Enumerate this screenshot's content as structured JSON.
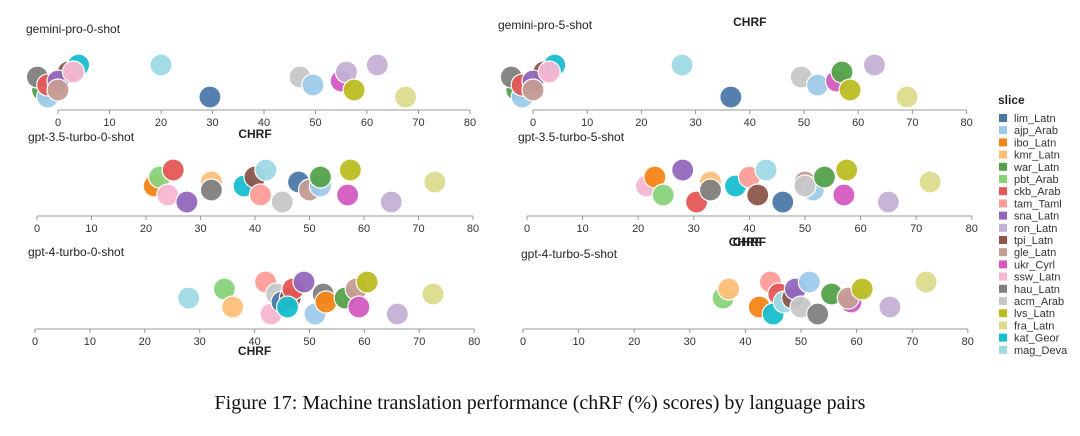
{
  "caption": "Figure 17: Machine translation performance (chRF (%) scores) by language pairs",
  "legend": {
    "title": "slice",
    "items": [
      {
        "name": "lim_Latn",
        "color": "#4c78a8"
      },
      {
        "name": "ajp_Arab",
        "color": "#9ecae9"
      },
      {
        "name": "ibo_Latn",
        "color": "#f58518"
      },
      {
        "name": "kmr_Latn",
        "color": "#ffbf79"
      },
      {
        "name": "war_Latn",
        "color": "#54a24b"
      },
      {
        "name": "pbt_Arab",
        "color": "#88d27a"
      },
      {
        "name": "ckb_Arab",
        "color": "#e45756"
      },
      {
        "name": "tam_Taml",
        "color": "#ff9d98"
      },
      {
        "name": "sna_Latn",
        "color": "#9467bd"
      },
      {
        "name": "ron_Latn",
        "color": "#c5b0d5"
      },
      {
        "name": "tpi_Latn",
        "color": "#8c564b"
      },
      {
        "name": "gle_Latn",
        "color": "#c49c94"
      },
      {
        "name": "ukr_Cyrl",
        "color": "#d45ac0"
      },
      {
        "name": "ssw_Latn",
        "color": "#f7b6d2"
      },
      {
        "name": "hau_Latn",
        "color": "#7f7f7f"
      },
      {
        "name": "acm_Arab",
        "color": "#c7c7c7"
      },
      {
        "name": "lvs_Latn",
        "color": "#bcbd22"
      },
      {
        "name": "fra_Latn",
        "color": "#dbdb8d"
      },
      {
        "name": "kat_Geor",
        "color": "#17becf"
      },
      {
        "name": "mag_Deva",
        "color": "#9edae5"
      }
    ]
  },
  "chart_data": [
    {
      "type": "scatter",
      "title": "gemini-pro-0-shot",
      "xlabel": "",
      "xlim": [
        0,
        80
      ],
      "xticks": [
        0,
        10,
        20,
        30,
        40,
        50,
        60,
        70,
        80
      ],
      "points": [
        {
          "slice": "tam_Taml",
          "x": 0
        },
        {
          "slice": "tpi_Latn",
          "x": 2
        },
        {
          "slice": "war_Latn",
          "x": -3
        },
        {
          "slice": "kat_Geor",
          "x": 4
        },
        {
          "slice": "ajp_Arab",
          "x": -2
        },
        {
          "slice": "hau_Latn",
          "x": -4
        },
        {
          "slice": "ckb_Arab",
          "x": -2
        },
        {
          "slice": "sna_Latn",
          "x": 0
        },
        {
          "slice": "ssw_Latn",
          "x": 3
        },
        {
          "slice": "gle_Latn",
          "x": 0
        },
        {
          "slice": "mag_Deva",
          "x": 20
        },
        {
          "slice": "lim_Latn",
          "x": 29.5
        },
        {
          "slice": "acm_Arab",
          "x": 47
        },
        {
          "slice": "ajp_Arab",
          "x": 49.5
        },
        {
          "slice": "ukr_Cyrl",
          "x": 55
        },
        {
          "slice": "ron_Latn",
          "x": 56
        },
        {
          "slice": "lvs_Latn",
          "x": 57.5
        },
        {
          "slice": "ron_Latn",
          "x": 62
        },
        {
          "slice": "fra_Latn",
          "x": 67.5
        }
      ]
    },
    {
      "type": "scatter",
      "title": "gemini-pro-5-shot",
      "xlabel": "CHRF",
      "xlim": [
        0,
        80
      ],
      "xticks": [
        0,
        10,
        20,
        30,
        40,
        50,
        60,
        70,
        80
      ],
      "points": [
        {
          "slice": "tam_Taml",
          "x": 0
        },
        {
          "slice": "tpi_Latn",
          "x": 2
        },
        {
          "slice": "war_Latn",
          "x": -3
        },
        {
          "slice": "kat_Geor",
          "x": 4
        },
        {
          "slice": "ajp_Arab",
          "x": -2
        },
        {
          "slice": "hau_Latn",
          "x": -4
        },
        {
          "slice": "ckb_Arab",
          "x": -2
        },
        {
          "slice": "sna_Latn",
          "x": 0
        },
        {
          "slice": "ssw_Latn",
          "x": 3
        },
        {
          "slice": "gle_Latn",
          "x": 0
        },
        {
          "slice": "mag_Deva",
          "x": 27.5
        },
        {
          "slice": "lim_Latn",
          "x": 36.5
        },
        {
          "slice": "acm_Arab",
          "x": 49.5
        },
        {
          "slice": "ajp_Arab",
          "x": 52.5
        },
        {
          "slice": "ukr_Cyrl",
          "x": 56
        },
        {
          "slice": "war_Latn",
          "x": 57
        },
        {
          "slice": "lvs_Latn",
          "x": 58.5
        },
        {
          "slice": "ron_Latn",
          "x": 63
        },
        {
          "slice": "fra_Latn",
          "x": 69
        }
      ]
    },
    {
      "type": "scatter",
      "title": "gpt-3.5-turbo-0-shot",
      "xlabel": "CHRF",
      "xlim": [
        0,
        80
      ],
      "xticks": [
        0,
        10,
        20,
        30,
        40,
        50,
        60,
        70,
        80
      ],
      "points": [
        {
          "slice": "ibo_Latn",
          "x": 21.5
        },
        {
          "slice": "pbt_Arab",
          "x": 22.5
        },
        {
          "slice": "ssw_Latn",
          "x": 24
        },
        {
          "slice": "ckb_Arab",
          "x": 25
        },
        {
          "slice": "sna_Latn",
          "x": 27.5
        },
        {
          "slice": "kmr_Latn",
          "x": 32
        },
        {
          "slice": "hau_Latn",
          "x": 32
        },
        {
          "slice": "kat_Geor",
          "x": 38
        },
        {
          "slice": "tpi_Latn",
          "x": 40
        },
        {
          "slice": "tam_Taml",
          "x": 41
        },
        {
          "slice": "mag_Deva",
          "x": 42
        },
        {
          "slice": "acm_Arab",
          "x": 45
        },
        {
          "slice": "lim_Latn",
          "x": 48
        },
        {
          "slice": "gle_Latn",
          "x": 50
        },
        {
          "slice": "ajp_Arab",
          "x": 52
        },
        {
          "slice": "war_Latn",
          "x": 52
        },
        {
          "slice": "ukr_Cyrl",
          "x": 57
        },
        {
          "slice": "lvs_Latn",
          "x": 57.5
        },
        {
          "slice": "ron_Latn",
          "x": 65
        },
        {
          "slice": "fra_Latn",
          "x": 73
        }
      ]
    },
    {
      "type": "scatter",
      "title": "gpt-3.5-turbo-5-shot",
      "xlabel": "CHRF",
      "xlim": [
        0,
        80
      ],
      "xticks": [
        0,
        10,
        20,
        30,
        40,
        50,
        60,
        70,
        80
      ],
      "points": [
        {
          "slice": "ssw_Latn",
          "x": 21.5
        },
        {
          "slice": "ibo_Latn",
          "x": 23
        },
        {
          "slice": "pbt_Arab",
          "x": 24.5
        },
        {
          "slice": "sna_Latn",
          "x": 28
        },
        {
          "slice": "ckb_Arab",
          "x": 30.5
        },
        {
          "slice": "kmr_Latn",
          "x": 33
        },
        {
          "slice": "hau_Latn",
          "x": 33
        },
        {
          "slice": "kat_Geor",
          "x": 37.5
        },
        {
          "slice": "tam_Taml",
          "x": 40
        },
        {
          "slice": "tpi_Latn",
          "x": 41.5
        },
        {
          "slice": "mag_Deva",
          "x": 43
        },
        {
          "slice": "lim_Latn",
          "x": 46
        },
        {
          "slice": "gle_Latn",
          "x": 50
        },
        {
          "slice": "ajp_Arab",
          "x": 51.5
        },
        {
          "slice": "acm_Arab",
          "x": 50
        },
        {
          "slice": "war_Latn",
          "x": 53.5
        },
        {
          "slice": "ukr_Cyrl",
          "x": 57
        },
        {
          "slice": "lvs_Latn",
          "x": 57.5
        },
        {
          "slice": "ron_Latn",
          "x": 65
        },
        {
          "slice": "fra_Latn",
          "x": 72.5
        }
      ]
    },
    {
      "type": "scatter",
      "title": "gpt-4-turbo-0-shot",
      "xlabel": "CHRF",
      "xlim": [
        0,
        80
      ],
      "xticks": [
        0,
        10,
        20,
        30,
        40,
        50,
        60,
        70,
        80
      ],
      "points": [
        {
          "slice": "mag_Deva",
          "x": 28
        },
        {
          "slice": "pbt_Arab",
          "x": 34.5
        },
        {
          "slice": "kmr_Latn",
          "x": 36
        },
        {
          "slice": "tam_Taml",
          "x": 42
        },
        {
          "slice": "ssw_Latn",
          "x": 43
        },
        {
          "slice": "acm_Arab",
          "x": 44
        },
        {
          "slice": "lim_Latn",
          "x": 45
        },
        {
          "slice": "tpi_Latn",
          "x": 46.5
        },
        {
          "slice": "ckb_Arab",
          "x": 47
        },
        {
          "slice": "kat_Geor",
          "x": 46
        },
        {
          "slice": "sna_Latn",
          "x": 49
        },
        {
          "slice": "ajp_Arab",
          "x": 51
        },
        {
          "slice": "hau_Latn",
          "x": 52.5
        },
        {
          "slice": "ibo_Latn",
          "x": 53
        },
        {
          "slice": "war_Latn",
          "x": 56.5
        },
        {
          "slice": "gle_Latn",
          "x": 58.5
        },
        {
          "slice": "ukr_Cyrl",
          "x": 59
        },
        {
          "slice": "lvs_Latn",
          "x": 60.5
        },
        {
          "slice": "ron_Latn",
          "x": 66
        },
        {
          "slice": "fra_Latn",
          "x": 72.5
        }
      ]
    },
    {
      "type": "scatter",
      "title": "gpt-4-turbo-5-shot",
      "xlabel": "CHRF",
      "xlim": [
        0,
        80
      ],
      "xticks": [
        0,
        10,
        20,
        30,
        40,
        50,
        60,
        70,
        80
      ],
      "points": [
        {
          "slice": "pbt_Arab",
          "x": 36
        },
        {
          "slice": "kmr_Latn",
          "x": 37
        },
        {
          "slice": "ibo_Latn",
          "x": 42.5
        },
        {
          "slice": "tam_Taml",
          "x": 44.5
        },
        {
          "slice": "kat_Geor",
          "x": 45
        },
        {
          "slice": "ckb_Arab",
          "x": 46
        },
        {
          "slice": "mag_Deva",
          "x": 47
        },
        {
          "slice": "tpi_Latn",
          "x": 48.5
        },
        {
          "slice": "sna_Latn",
          "x": 49
        },
        {
          "slice": "acm_Arab",
          "x": 50
        },
        {
          "slice": "ajp_Arab",
          "x": 51.5
        },
        {
          "slice": "hau_Latn",
          "x": 53
        },
        {
          "slice": "war_Latn",
          "x": 55.5
        },
        {
          "slice": "ukr_Cyrl",
          "x": 59
        },
        {
          "slice": "gle_Latn",
          "x": 58.5
        },
        {
          "slice": "lvs_Latn",
          "x": 61
        },
        {
          "slice": "ron_Latn",
          "x": 66
        },
        {
          "slice": "fra_Latn",
          "x": 72.5
        }
      ]
    }
  ]
}
